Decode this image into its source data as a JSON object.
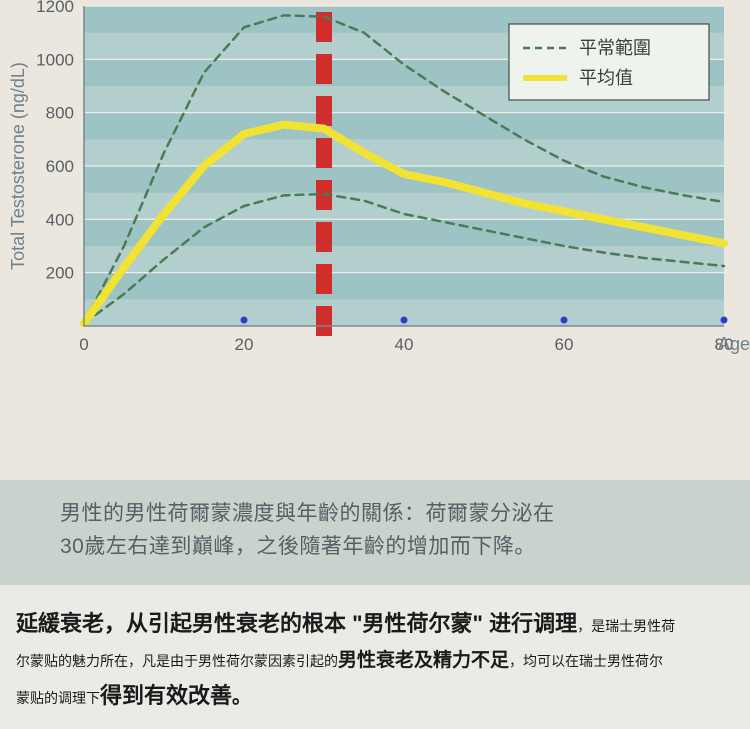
{
  "chart": {
    "type": "line",
    "background_color": "#ebe7de",
    "plot_background": "#9ec3c4",
    "band_color": "#b2cecd",
    "grid_color": "#f2f3ee",
    "axis_color": "#7a8890",
    "ylabel": "Total Testosterone (ng/dL)",
    "ylabel_color": "#728088",
    "ylabel_fontsize": 18,
    "xlabel": "Age",
    "xlabel_color": "#728088",
    "xlabel_fontsize": 18,
    "tick_fontsize": 17,
    "tick_color": "#585f63",
    "xlim": [
      0,
      80
    ],
    "ylim": [
      0,
      1200
    ],
    "xticks": [
      0,
      20,
      40,
      60,
      80
    ],
    "yticks": [
      200,
      400,
      600,
      800,
      1000,
      1200
    ],
    "marker_x": 30,
    "marker_color": "#cf2e2c",
    "marker_width": 16,
    "legend": {
      "bg": "#eef3ee",
      "border": "#444a45",
      "items": [
        {
          "label": "平常範圍",
          "style": "dashed",
          "color": "#4a7b57"
        },
        {
          "label": "平均值",
          "style": "solid",
          "color": "#f2e233"
        }
      ]
    },
    "series": {
      "upper": {
        "color": "#4a7b57",
        "dash": "8 6",
        "width": 2.5,
        "points": [
          [
            0,
            10
          ],
          [
            5,
            300
          ],
          [
            10,
            650
          ],
          [
            15,
            950
          ],
          [
            20,
            1120
          ],
          [
            25,
            1165
          ],
          [
            30,
            1160
          ],
          [
            35,
            1100
          ],
          [
            40,
            980
          ],
          [
            45,
            880
          ],
          [
            50,
            790
          ],
          [
            55,
            700
          ],
          [
            60,
            620
          ],
          [
            65,
            560
          ],
          [
            70,
            520
          ],
          [
            75,
            490
          ],
          [
            80,
            465
          ]
        ]
      },
      "mean": {
        "color": "#f2e233",
        "dash": "",
        "width": 8,
        "points": [
          [
            0,
            10
          ],
          [
            5,
            220
          ],
          [
            10,
            420
          ],
          [
            15,
            600
          ],
          [
            20,
            720
          ],
          [
            25,
            755
          ],
          [
            30,
            740
          ],
          [
            35,
            650
          ],
          [
            40,
            570
          ],
          [
            45,
            540
          ],
          [
            50,
            500
          ],
          [
            55,
            460
          ],
          [
            60,
            430
          ],
          [
            65,
            400
          ],
          [
            70,
            370
          ],
          [
            75,
            340
          ],
          [
            80,
            310
          ]
        ]
      },
      "lower": {
        "color": "#4a7b57",
        "dash": "8 6",
        "width": 2.5,
        "points": [
          [
            0,
            10
          ],
          [
            5,
            120
          ],
          [
            10,
            250
          ],
          [
            15,
            370
          ],
          [
            20,
            450
          ],
          [
            25,
            490
          ],
          [
            30,
            495
          ],
          [
            35,
            470
          ],
          [
            40,
            420
          ],
          [
            45,
            390
          ],
          [
            50,
            360
          ],
          [
            55,
            330
          ],
          [
            60,
            300
          ],
          [
            65,
            275
          ],
          [
            70,
            255
          ],
          [
            75,
            240
          ],
          [
            80,
            225
          ]
        ]
      }
    },
    "dots_x": [
      20,
      40,
      60,
      80
    ],
    "dot_color": "#2b3fc9"
  },
  "caption": {
    "line1": "男性的男性荷爾蒙濃度與年齡的關係：荷爾蒙分泌在",
    "line2": "30歲左右達到巔峰，之後隨著年齡的增加而下降。"
  },
  "bottom": {
    "p1_lg": "延緩衰老，从引起男性衰老的根本 \"男性荷尔蒙\" 进行调理",
    "p1_sm": "，是瑞士男性荷",
    "p2_sm_a": "尔蒙贴的魅力所在，凡是由于男性荷尔蒙因素引起的",
    "p2_md_a": "男性衰老及精力不足",
    "p2_sm_b": "，均可以在瑞士男性荷尔",
    "p3_sm": "蒙贴的调理下",
    "p3_lg": "得到有效改善",
    "p3_end": "。"
  }
}
